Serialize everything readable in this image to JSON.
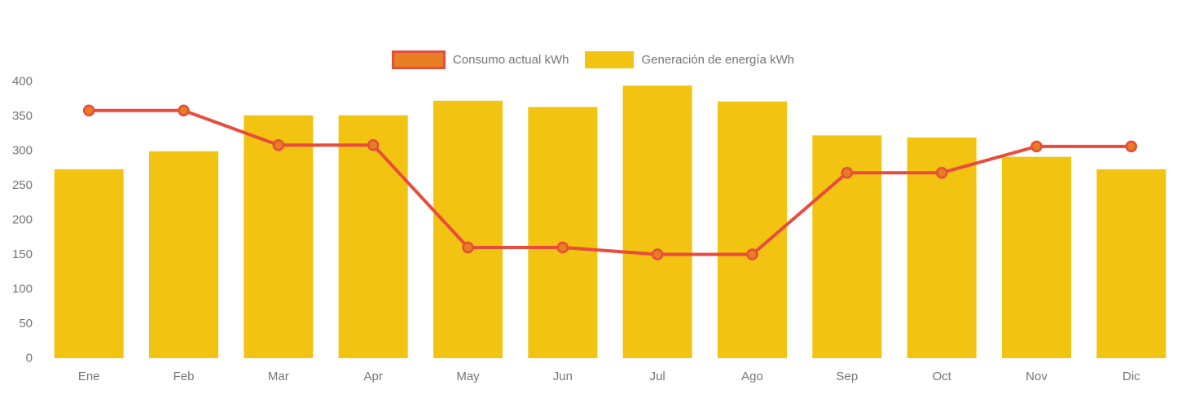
{
  "chart_data": {
    "type": "bar",
    "title": "",
    "xlabel": "",
    "ylabel": "",
    "categories": [
      "Ene",
      "Feb",
      "Mar",
      "Apr",
      "May",
      "Jun",
      "Jul",
      "Ago",
      "Sep",
      "Oct",
      "Nov",
      "Dic"
    ],
    "series": [
      {
        "name": "Consumo actual kWh",
        "type": "line",
        "color": "#E74C3C",
        "point_fill": "#E67E22",
        "values": [
          358,
          358,
          308,
          308,
          160,
          160,
          150,
          150,
          268,
          268,
          306,
          306
        ]
      },
      {
        "name": "Generación de energía kWh",
        "type": "bar",
        "color": "#F2C311",
        "values": [
          273,
          299,
          351,
          351,
          372,
          363,
          394,
          371,
          322,
          319,
          291,
          273
        ]
      }
    ],
    "ylim": [
      0,
      400
    ],
    "ytick_step": 50,
    "ytick_labels": [
      "0",
      "50",
      "100",
      "150",
      "200",
      "250",
      "300",
      "350",
      "400"
    ],
    "grid": false,
    "legend_position": "top-center",
    "text_color": "#757575"
  }
}
